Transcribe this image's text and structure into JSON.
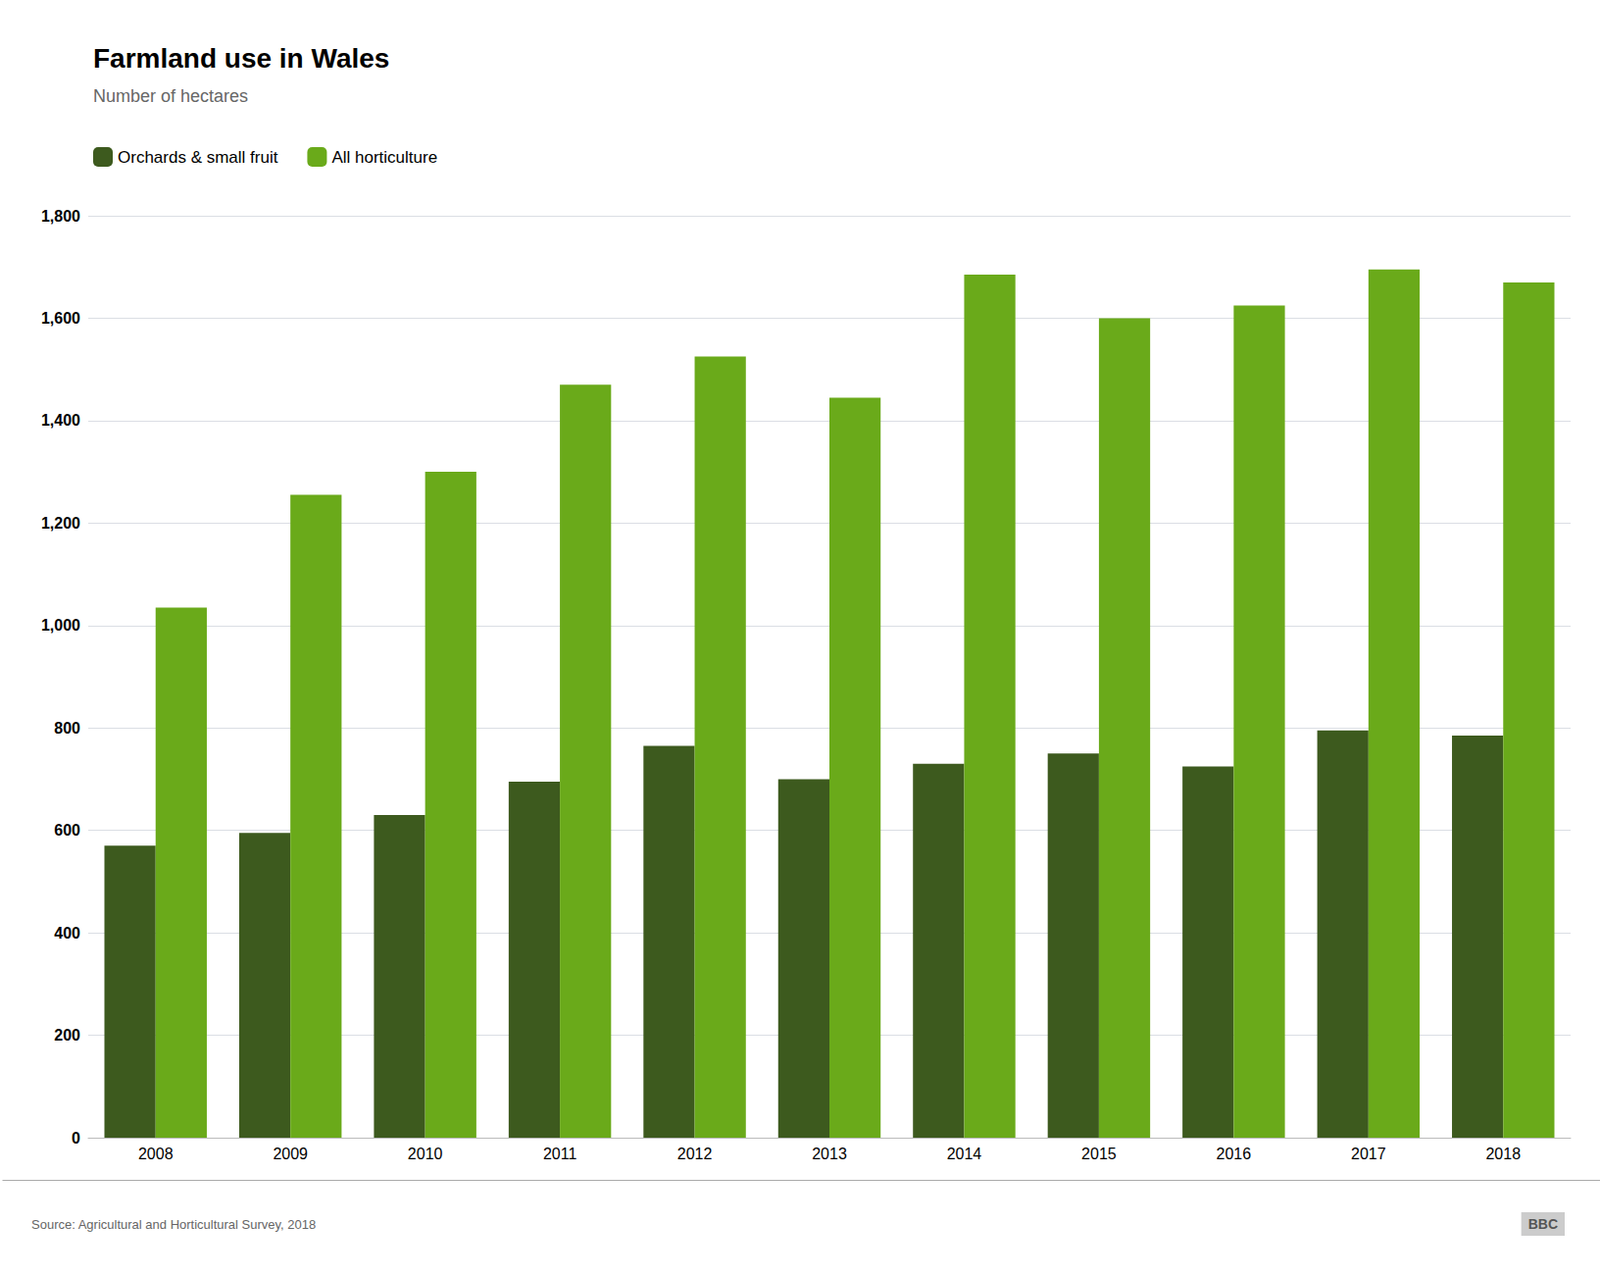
{
  "chart_data": {
    "type": "bar",
    "title": "Farmland use in Wales",
    "subtitle": "Number of hectares",
    "annotations": [
      "Source: Agricultural and Horticultural Survey, 2018",
      "BBC"
    ],
    "categories": [
      "2008",
      "2009",
      "2010",
      "2011",
      "2012",
      "2013",
      "2014",
      "2015",
      "2016",
      "2017",
      "2018"
    ],
    "series": [
      {
        "name": "Orchards & small fruit",
        "color": "#3d5a1e",
        "values": [
          570,
          595,
          630,
          695,
          765,
          700,
          730,
          750,
          725,
          795,
          785
        ]
      },
      {
        "name": "All horticulture",
        "color": "#6aaa1a",
        "values": [
          1035,
          1255,
          1300,
          1470,
          1525,
          1445,
          1685,
          1600,
          1625,
          1695,
          1670
        ]
      }
    ],
    "ylim": [
      0,
      1800
    ],
    "yticks": [
      0,
      200,
      400,
      600,
      800,
      {
        "value": 1000,
        "label": "1,000"
      },
      {
        "value": 1200,
        "label": "1,200"
      },
      {
        "value": 1400,
        "label": "1,400"
      },
      {
        "value": 1600,
        "label": "1,600"
      },
      {
        "value": 1800,
        "label": "1,800"
      }
    ],
    "grid": true,
    "legend": "upper left"
  }
}
